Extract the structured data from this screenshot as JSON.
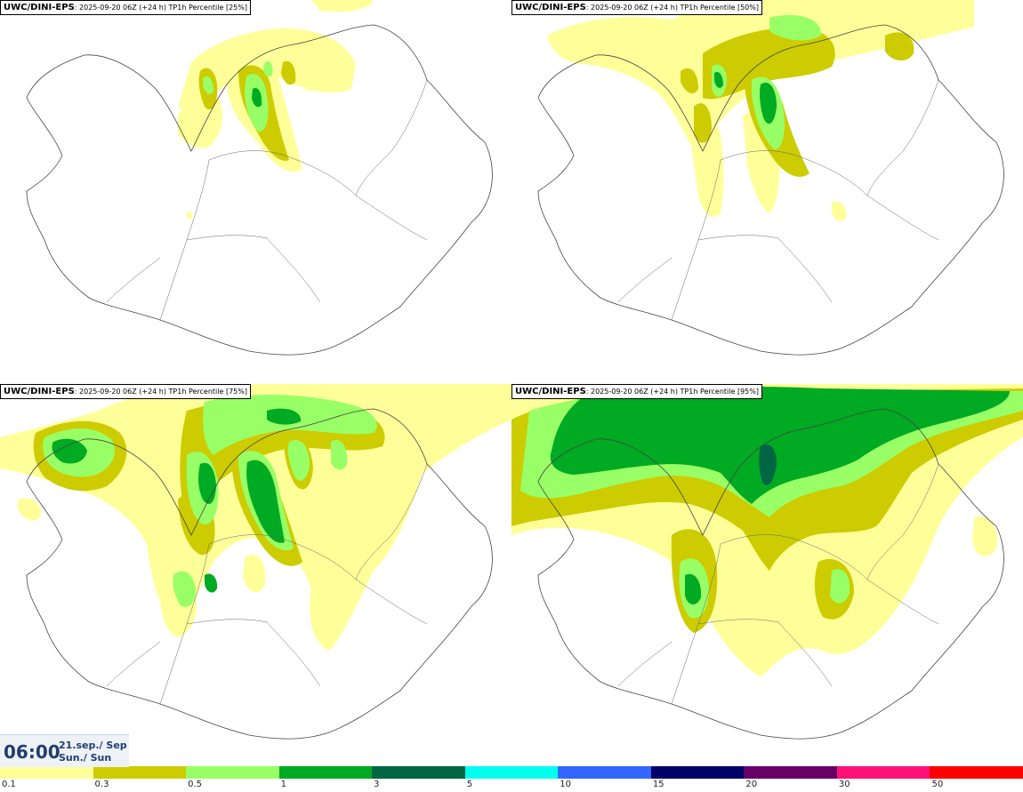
{
  "panels": [
    {
      "model": "UWC/DINI-EPS",
      "run": "2025-09-20 06Z (+24 h) TP1h Percentile [25%]"
    },
    {
      "model": "UWC/DINI-EPS",
      "run": "2025-09-20 06Z (+24 h) TP1h Percentile [50%]"
    },
    {
      "model": "UWC/DINI-EPS",
      "run": "2025-09-20 06Z (+24 h) TP1h Percentile [75%]"
    },
    {
      "model": "UWC/DINI-EPS",
      "run": "2025-09-20 06Z (+24 h) TP1h Percentile [95%]"
    }
  ],
  "valid_time": {
    "time": "06:00",
    "date_line1": "21.sep./ Sep",
    "date_line2": "Sun./ Sun"
  },
  "legend": {
    "ticks": [
      "0.1",
      "0.3",
      "0.5",
      "1",
      "3",
      "5",
      "10",
      "15",
      "20",
      "30",
      "50"
    ],
    "colors": [
      "#ffff99",
      "#cccc00",
      "#99ff66",
      "#00aa22",
      "#006644",
      "#00ffee",
      "#3366ff",
      "#000066",
      "#660066",
      "#ff1177",
      "#ff0000"
    ]
  }
}
